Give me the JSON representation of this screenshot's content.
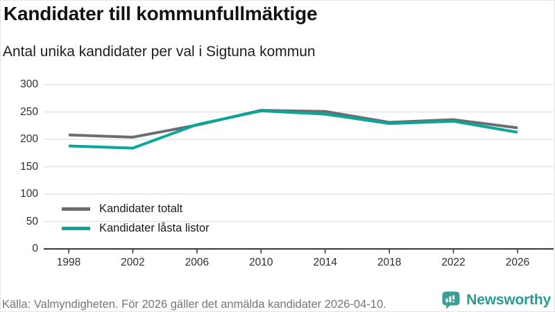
{
  "header": {
    "title": "Kandidater till kommunfullmäktige",
    "subtitle": "Antal unika kandidater per val i Sigtuna kommun"
  },
  "chart_data": {
    "type": "line",
    "title": "Kandidater till kommunfullmäktige",
    "subtitle": "Antal unika kandidater per val i Sigtuna kommun",
    "categories": [
      "1998",
      "2002",
      "2006",
      "2010",
      "2014",
      "2018",
      "2022",
      "2026"
    ],
    "series": [
      {
        "name": "Kandidater totalt",
        "color": "#6c6c71",
        "values": [
          208,
          204,
          226,
          253,
          251,
          231,
          236,
          221
        ]
      },
      {
        "name": "Kandidater låsta listor",
        "color": "#09a69a",
        "values": [
          188,
          184,
          227,
          252,
          246,
          229,
          233,
          213
        ]
      }
    ],
    "xlabel": "",
    "ylabel": "",
    "ylim": [
      0,
      300
    ],
    "ytick_step": 50,
    "grid": "horizontal",
    "legend_position": "inside-bottom-left"
  },
  "footer": {
    "source": "Källa: Valmyndigheten. För 2026 gäller det anmälda kandidater 2026-04-10.",
    "brand": "Newsworthy"
  },
  "colors": {
    "accent_teal": "#09a69a",
    "neutral_gray": "#6c6c71",
    "brand_teal": "#3aa096",
    "gridline": "#e3e3e6",
    "axis": "#38383b"
  }
}
